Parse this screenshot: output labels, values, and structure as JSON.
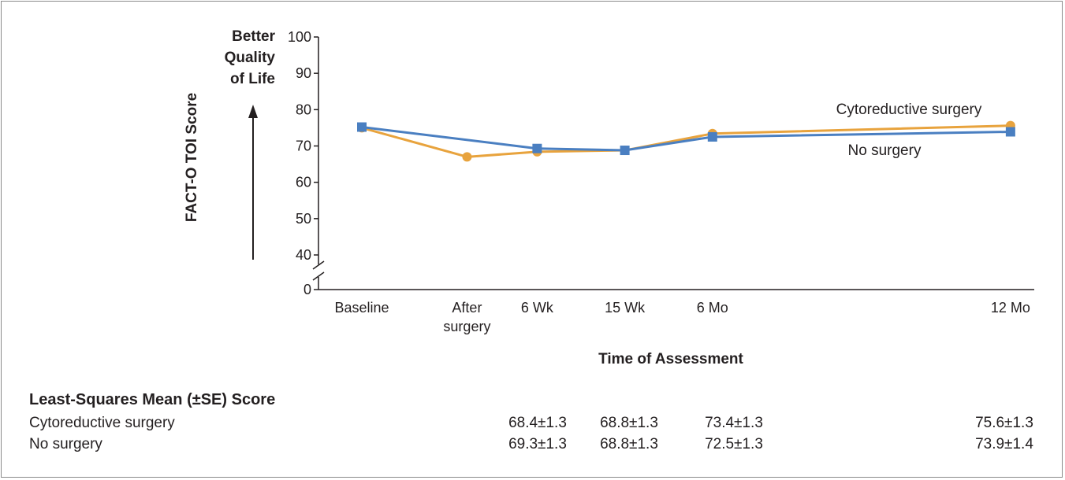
{
  "chart_data": {
    "type": "line",
    "ylabel": "FACT-O TOI Score",
    "y_direction_label": [
      "Better",
      "Quality",
      "of Life"
    ],
    "xlabel": "Time of Assessment",
    "categories": [
      [
        "Baseline"
      ],
      [
        "After",
        "surgery"
      ],
      [
        "6 Wk"
      ],
      [
        "15 Wk"
      ],
      [
        "6 Mo"
      ],
      [
        "12 Mo"
      ]
    ],
    "x_positions": [
      0,
      1.2,
      2.0,
      3.0,
      4.0,
      7.4
    ],
    "y_ticks": [
      0,
      40,
      50,
      60,
      70,
      80,
      90,
      100
    ],
    "ylim": [
      0,
      100
    ],
    "axis_break": true,
    "grid": false,
    "series": [
      {
        "name": "Cytoreductive surgery",
        "color": "#e8a33d",
        "marker": "circle",
        "values": [
          75.0,
          67.0,
          68.4,
          68.8,
          73.4,
          75.6
        ]
      },
      {
        "name": "No surgery",
        "color": "#4a7fc1",
        "marker": "square",
        "values": [
          75.2,
          null,
          69.3,
          68.8,
          72.5,
          73.9
        ]
      }
    ]
  },
  "table": {
    "heading": "Least-Squares Mean (±SE) Score",
    "rows": [
      {
        "label": "Cytoreductive surgery",
        "cells": [
          "68.4±1.3",
          "68.8±1.3",
          "73.4±1.3",
          "75.6±1.3"
        ]
      },
      {
        "label": "No surgery",
        "cells": [
          "69.3±1.3",
          "68.8±1.3",
          "72.5±1.3",
          "73.9±1.4"
        ]
      }
    ]
  }
}
